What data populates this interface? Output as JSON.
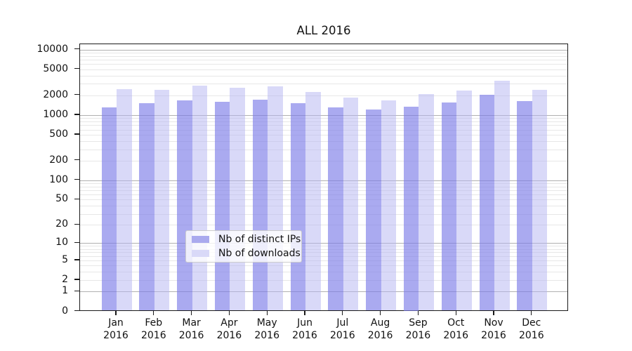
{
  "title": "ALL 2016",
  "chart_data": {
    "type": "bar",
    "title": "ALL 2016",
    "categories": [
      "Jan",
      "Feb",
      "Mar",
      "Apr",
      "May",
      "Jun",
      "Jul",
      "Aug",
      "Sep",
      "Oct",
      "Nov",
      "Dec"
    ],
    "category_year": "2016",
    "series": [
      {
        "name": "Nb of distinct IPs",
        "color": "#aaaaee",
        "fill": "rgba(124,124,232,0.65)",
        "values": [
          1320,
          1520,
          1660,
          1610,
          1710,
          1520,
          1300,
          1220,
          1340,
          1560,
          2030,
          1640
        ]
      },
      {
        "name": "Nb of downloads",
        "color": "#d9d9f8",
        "fill": "rgba(179,179,242,0.5)",
        "values": [
          2510,
          2430,
          2840,
          2630,
          2750,
          2240,
          1840,
          1680,
          2110,
          2390,
          3320,
          2430
        ]
      }
    ],
    "xlabel": "",
    "ylabel": "",
    "y_scale": "log10(1+x)",
    "y_tick_values": [
      10000,
      5000,
      2000,
      1000,
      500,
      200,
      100,
      50,
      20,
      10,
      5,
      2,
      1,
      0
    ],
    "y_major_gridlines": [
      1,
      10,
      100,
      1000,
      10000
    ],
    "ylim": [
      0,
      12100
    ],
    "grid": "horizontal major and minor",
    "legend_position": "inside bottom-center"
  },
  "legend": {
    "items": [
      {
        "label": "Nb of distinct IPs",
        "swatch_color": "#aaaaee"
      },
      {
        "label": "Nb of downloads",
        "swatch_color": "#d9d9f8"
      }
    ]
  },
  "colors": {
    "background": "#ffffff",
    "axis": "#1a1a1a",
    "grid_major": "#b0b0b0",
    "grid_minor": "#e7e7e7",
    "text": "#111111"
  }
}
